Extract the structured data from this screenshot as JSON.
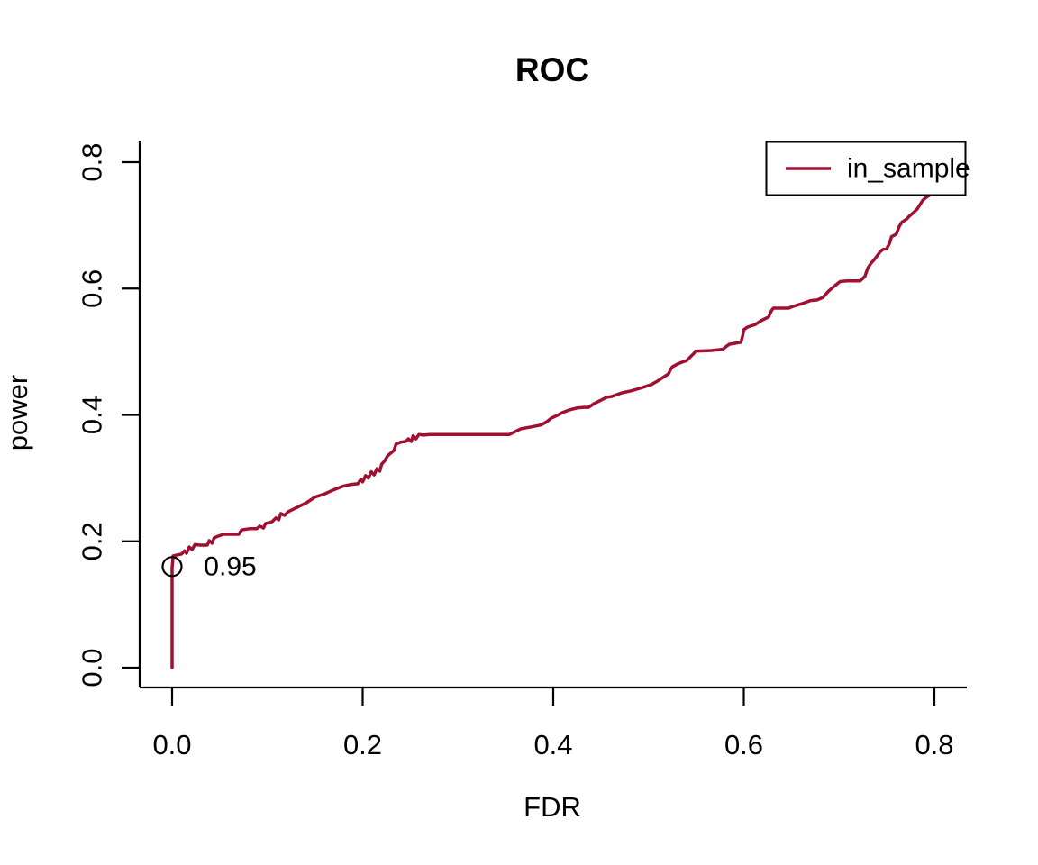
{
  "chart_data": {
    "type": "line",
    "title": "ROC",
    "xlabel": "FDR",
    "ylabel": "power",
    "xlim": [
      0.0,
      0.8
    ],
    "ylim": [
      0.0,
      0.8
    ],
    "grid": false,
    "x_ticks": {
      "values": [
        0.0,
        0.2,
        0.4,
        0.6,
        0.8
      ],
      "labels": [
        "0.0",
        "0.2",
        "0.4",
        "0.6",
        "0.8"
      ]
    },
    "y_ticks": {
      "values": [
        0.0,
        0.2,
        0.4,
        0.6,
        0.8
      ],
      "labels": [
        "0.0",
        "0.2",
        "0.4",
        "0.6",
        "0.8"
      ]
    },
    "legend": {
      "position": "top-right",
      "entries": [
        {
          "label": "in_sample",
          "color": "#A01030"
        }
      ]
    },
    "series": [
      {
        "name": "in_sample",
        "color": "#A01030",
        "points": [
          [
            0.0,
            0.0
          ],
          [
            0.0,
            0.158
          ],
          [
            0.001,
            0.177
          ],
          [
            0.01,
            0.18
          ],
          [
            0.013,
            0.185
          ],
          [
            0.015,
            0.181
          ],
          [
            0.018,
            0.191
          ],
          [
            0.021,
            0.187
          ],
          [
            0.024,
            0.195
          ],
          [
            0.029,
            0.194
          ],
          [
            0.037,
            0.194
          ],
          [
            0.039,
            0.201
          ],
          [
            0.042,
            0.197
          ],
          [
            0.044,
            0.205
          ],
          [
            0.048,
            0.208
          ],
          [
            0.054,
            0.211
          ],
          [
            0.07,
            0.211
          ],
          [
            0.073,
            0.218
          ],
          [
            0.082,
            0.22
          ],
          [
            0.089,
            0.22
          ],
          [
            0.092,
            0.224
          ],
          [
            0.096,
            0.221
          ],
          [
            0.098,
            0.228
          ],
          [
            0.105,
            0.231
          ],
          [
            0.109,
            0.237
          ],
          [
            0.112,
            0.234
          ],
          [
            0.114,
            0.244
          ],
          [
            0.118,
            0.241
          ],
          [
            0.122,
            0.247
          ],
          [
            0.141,
            0.261
          ],
          [
            0.15,
            0.27
          ],
          [
            0.16,
            0.275
          ],
          [
            0.169,
            0.281
          ],
          [
            0.179,
            0.287
          ],
          [
            0.188,
            0.29
          ],
          [
            0.195,
            0.291
          ],
          [
            0.198,
            0.298
          ],
          [
            0.2,
            0.294
          ],
          [
            0.203,
            0.304
          ],
          [
            0.206,
            0.3
          ],
          [
            0.209,
            0.31
          ],
          [
            0.212,
            0.305
          ],
          [
            0.215,
            0.315
          ],
          [
            0.218,
            0.311
          ],
          [
            0.22,
            0.322
          ],
          [
            0.223,
            0.327
          ],
          [
            0.226,
            0.335
          ],
          [
            0.229,
            0.339
          ],
          [
            0.233,
            0.344
          ],
          [
            0.235,
            0.354
          ],
          [
            0.24,
            0.357
          ],
          [
            0.245,
            0.358
          ],
          [
            0.248,
            0.362
          ],
          [
            0.251,
            0.358
          ],
          [
            0.253,
            0.367
          ],
          [
            0.256,
            0.362
          ],
          [
            0.259,
            0.369
          ],
          [
            0.264,
            0.368
          ],
          [
            0.27,
            0.369
          ],
          [
            0.354,
            0.369
          ],
          [
            0.358,
            0.372
          ],
          [
            0.366,
            0.378
          ],
          [
            0.377,
            0.381
          ],
          [
            0.387,
            0.384
          ],
          [
            0.393,
            0.389
          ],
          [
            0.398,
            0.395
          ],
          [
            0.404,
            0.399
          ],
          [
            0.41,
            0.404
          ],
          [
            0.417,
            0.408
          ],
          [
            0.425,
            0.411
          ],
          [
            0.432,
            0.412
          ],
          [
            0.437,
            0.412
          ],
          [
            0.443,
            0.418
          ],
          [
            0.451,
            0.424
          ],
          [
            0.456,
            0.428
          ],
          [
            0.461,
            0.429
          ],
          [
            0.472,
            0.435
          ],
          [
            0.481,
            0.438
          ],
          [
            0.491,
            0.442
          ],
          [
            0.503,
            0.448
          ],
          [
            0.51,
            0.454
          ],
          [
            0.515,
            0.459
          ],
          [
            0.521,
            0.465
          ],
          [
            0.523,
            0.472
          ],
          [
            0.525,
            0.476
          ],
          [
            0.531,
            0.481
          ],
          [
            0.536,
            0.484
          ],
          [
            0.54,
            0.486
          ],
          [
            0.544,
            0.492
          ],
          [
            0.548,
            0.498
          ],
          [
            0.549,
            0.501
          ],
          [
            0.566,
            0.502
          ],
          [
            0.578,
            0.504
          ],
          [
            0.582,
            0.509
          ],
          [
            0.585,
            0.512
          ],
          [
            0.597,
            0.515
          ],
          [
            0.599,
            0.526
          ],
          [
            0.6,
            0.535
          ],
          [
            0.604,
            0.539
          ],
          [
            0.612,
            0.543
          ],
          [
            0.618,
            0.549
          ],
          [
            0.626,
            0.555
          ],
          [
            0.629,
            0.565
          ],
          [
            0.631,
            0.569
          ],
          [
            0.647,
            0.569
          ],
          [
            0.652,
            0.572
          ],
          [
            0.661,
            0.576
          ],
          [
            0.67,
            0.581
          ],
          [
            0.677,
            0.582
          ],
          [
            0.683,
            0.586
          ],
          [
            0.689,
            0.596
          ],
          [
            0.696,
            0.605
          ],
          [
            0.701,
            0.611
          ],
          [
            0.708,
            0.612
          ],
          [
            0.722,
            0.612
          ],
          [
            0.727,
            0.619
          ],
          [
            0.73,
            0.632
          ],
          [
            0.733,
            0.639
          ],
          [
            0.737,
            0.646
          ],
          [
            0.743,
            0.658
          ],
          [
            0.746,
            0.662
          ],
          [
            0.75,
            0.663
          ],
          [
            0.753,
            0.672
          ],
          [
            0.755,
            0.682
          ],
          [
            0.76,
            0.686
          ],
          [
            0.763,
            0.698
          ],
          [
            0.766,
            0.705
          ],
          [
            0.771,
            0.71
          ],
          [
            0.774,
            0.715
          ],
          [
            0.778,
            0.72
          ],
          [
            0.782,
            0.726
          ],
          [
            0.785,
            0.733
          ],
          [
            0.788,
            0.74
          ],
          [
            0.792,
            0.745
          ],
          [
            0.795,
            0.748
          ],
          [
            0.8,
            0.78
          ]
        ]
      }
    ],
    "annotations": [
      {
        "type": "point-marker",
        "x": 0.0,
        "y": 0.16,
        "shape": "open-circle",
        "color": "#000000"
      },
      {
        "type": "text",
        "x": 0.061,
        "y": 0.16,
        "text": "0.95",
        "color": "#A01030"
      }
    ]
  },
  "colors": {
    "background": "#ffffff",
    "axis": "#000000",
    "series": "#A01030"
  }
}
